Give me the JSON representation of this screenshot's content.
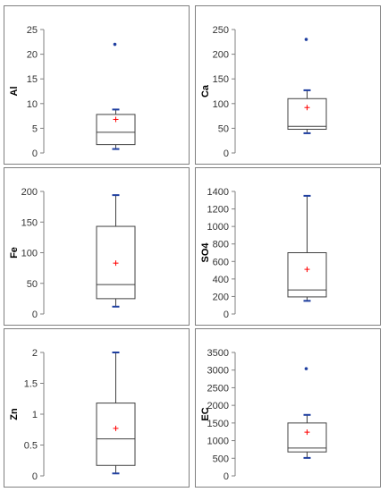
{
  "figure": {
    "colors": {
      "box": "#404040",
      "axis": "#808080",
      "whisker_cap": "#1f3fa0",
      "outlier": "#1f3fa0",
      "mean": "#ff0000",
      "border": "#808080"
    }
  },
  "chart_data": [
    {
      "type": "box",
      "ylabel": "Al",
      "ylim": [
        0,
        25
      ],
      "yticks": [
        "0",
        "5",
        "10",
        "15",
        "20",
        "25"
      ],
      "box": {
        "min": 0.8,
        "q1": 1.7,
        "median": 4.2,
        "q3": 7.8,
        "max": 8.8,
        "mean": 6.8,
        "outliers": [
          22
        ]
      }
    },
    {
      "type": "box",
      "ylabel": "Ca",
      "ylim": [
        0,
        250
      ],
      "yticks": [
        "0",
        "50",
        "100",
        "150",
        "200",
        "250"
      ],
      "box": {
        "min": 40,
        "q1": 48,
        "median": 54,
        "q3": 110,
        "max": 127,
        "mean": 92,
        "outliers": [
          230
        ]
      }
    },
    {
      "type": "box",
      "ylabel": "Fe",
      "ylim": [
        0,
        200
      ],
      "yticks": [
        "0",
        "50",
        "100",
        "150",
        "200"
      ],
      "box": {
        "min": 12,
        "q1": 25,
        "median": 48,
        "q3": 143,
        "max": 194,
        "mean": 83,
        "outliers": []
      }
    },
    {
      "type": "box",
      "ylabel": "SO4",
      "ylim": [
        0,
        1400
      ],
      "yticks": [
        "0",
        "200",
        "400",
        "600",
        "800",
        "1000",
        "1200",
        "1400"
      ],
      "box": {
        "min": 150,
        "q1": 195,
        "median": 275,
        "q3": 700,
        "max": 1350,
        "mean": 510,
        "outliers": []
      }
    },
    {
      "type": "box",
      "ylabel": "Zn",
      "ylim": [
        0,
        2
      ],
      "yticks": [
        "0",
        "0.5",
        "1",
        "1.5",
        "2"
      ],
      "box": {
        "min": 0.04,
        "q1": 0.17,
        "median": 0.6,
        "q3": 1.18,
        "max": 2.0,
        "mean": 0.77,
        "outliers": []
      }
    },
    {
      "type": "box",
      "ylabel": "EC",
      "ylim": [
        0,
        3500
      ],
      "yticks": [
        "0",
        "500",
        "1000",
        "1500",
        "2000",
        "2500",
        "3000",
        "3500"
      ],
      "box": {
        "min": 510,
        "q1": 680,
        "median": 790,
        "q3": 1500,
        "max": 1730,
        "mean": 1240,
        "outliers": [
          3040
        ]
      }
    }
  ]
}
